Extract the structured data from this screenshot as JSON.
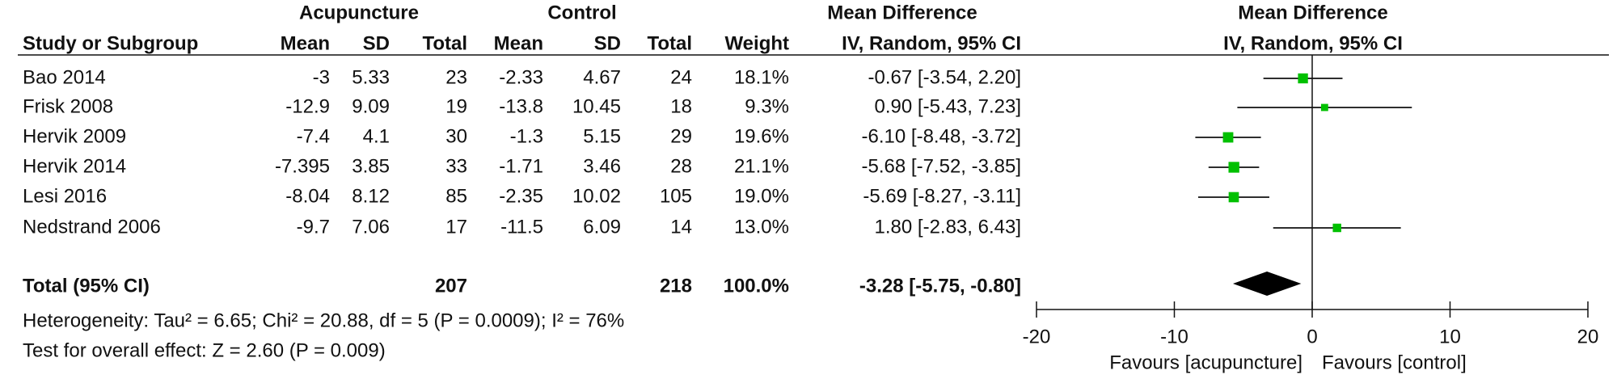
{
  "chart_data": {
    "type": "forest",
    "group_headers": {
      "acupuncture": "Acupuncture",
      "control": "Control",
      "table_effect": "Mean Difference",
      "plot_effect": "Mean Difference"
    },
    "columns": [
      "Study or Subgroup",
      "Mean",
      "SD",
      "Total",
      "Mean",
      "SD",
      "Total",
      "Weight",
      "IV, Random, 95% CI",
      "IV, Random, 95% CI"
    ],
    "studies": [
      {
        "name": "Bao 2014",
        "acupuncture": {
          "mean": -3,
          "sd": 5.33,
          "total": 23
        },
        "control": {
          "mean": -2.33,
          "sd": 4.67,
          "total": 24
        },
        "weight": 18.1,
        "weight_label": "18.1%",
        "md": -0.67,
        "ci": [
          -3.54,
          2.2
        ],
        "md_label": "-0.67 [-3.54, 2.20]"
      },
      {
        "name": "Frisk 2008",
        "acupuncture": {
          "mean": -12.9,
          "sd": 9.09,
          "total": 19
        },
        "control": {
          "mean": -13.8,
          "sd": 10.45,
          "total": 18
        },
        "weight": 9.3,
        "weight_label": "9.3%",
        "md": 0.9,
        "ci": [
          -5.43,
          7.23
        ],
        "md_label": "0.90 [-5.43, 7.23]"
      },
      {
        "name": "Hervik 2009",
        "acupuncture": {
          "mean": -7.4,
          "sd": 4.1,
          "total": 30
        },
        "control": {
          "mean": -1.3,
          "sd": 5.15,
          "total": 29
        },
        "weight": 19.6,
        "weight_label": "19.6%",
        "md": -6.1,
        "ci": [
          -8.48,
          -3.72
        ],
        "md_label": "-6.10 [-8.48, -3.72]"
      },
      {
        "name": "Hervik 2014",
        "acupuncture": {
          "mean": -7.395,
          "sd": 3.85,
          "total": 33
        },
        "control": {
          "mean": -1.71,
          "sd": 3.46,
          "total": 28
        },
        "weight": 21.1,
        "weight_label": "21.1%",
        "md": -5.68,
        "ci": [
          -7.52,
          -3.85
        ],
        "md_label": "-5.68 [-7.52, -3.85]"
      },
      {
        "name": "Lesi 2016",
        "acupuncture": {
          "mean": -8.04,
          "sd": 8.12,
          "total": 85
        },
        "control": {
          "mean": -2.35,
          "sd": 10.02,
          "total": 105
        },
        "weight": 19.0,
        "weight_label": "19.0%",
        "md": -5.69,
        "ci": [
          -8.27,
          -3.11
        ],
        "md_label": "-5.69 [-8.27, -3.11]"
      },
      {
        "name": "Nedstrand 2006",
        "acupuncture": {
          "mean": -9.7,
          "sd": 7.06,
          "total": 17
        },
        "control": {
          "mean": -11.5,
          "sd": 6.09,
          "total": 14
        },
        "weight": 13.0,
        "weight_label": "13.0%",
        "md": 1.8,
        "ci": [
          -2.83,
          6.43
        ],
        "md_label": "1.80 [-2.83, 6.43]"
      }
    ],
    "total": {
      "name": "Total (95% CI)",
      "acupuncture_total": 207,
      "control_total": 218,
      "weight": 100,
      "weight_label": "100.0%",
      "md": -3.28,
      "ci": [
        -5.75,
        -0.8
      ],
      "md_label": "-3.28 [-5.75, -0.80]"
    },
    "heterogeneity": "Heterogeneity: Tau² = 6.65; Chi² = 20.88, df = 5 (P = 0.0009); I² = 76%",
    "overall_effect": "Test for overall effect: Z = 2.60 (P = 0.009)",
    "xlim": [
      -20,
      20
    ],
    "xticks": [
      -20,
      -10,
      0,
      10,
      20
    ],
    "favours_left": "Favours [acupuncture]",
    "favours_right": "Favours [control]",
    "marker_color": "#00c000"
  }
}
